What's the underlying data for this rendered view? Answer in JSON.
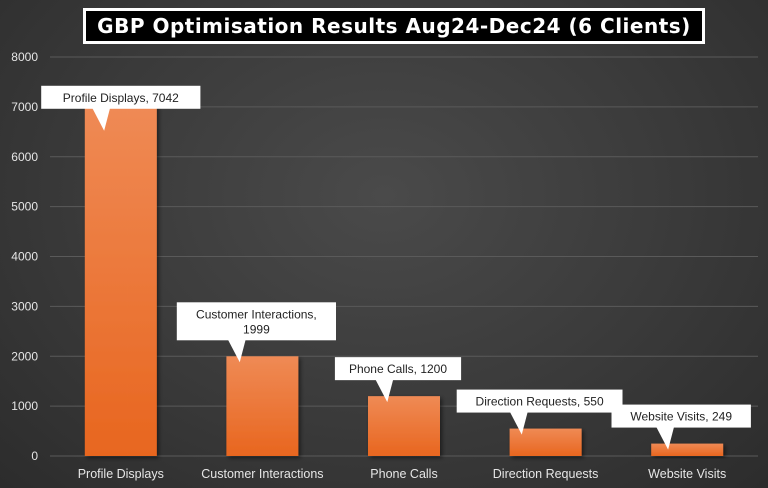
{
  "chart_data": {
    "type": "bar",
    "title": "GBP Optimisation Results Aug24-Dec24 (6 Clients)",
    "categories": [
      "Profile Displays",
      "Customer Interactions",
      "Phone Calls",
      "Direction Requests",
      "Website Visits"
    ],
    "values": [
      7042,
      1999,
      1200,
      550,
      249
    ],
    "data_labels": [
      [
        "Profile Displays, 7042"
      ],
      [
        "Customer Interactions,",
        "1999"
      ],
      [
        "Phone Calls, 1200"
      ],
      [
        "Direction Requests, 550"
      ],
      [
        "Website Visits, 249"
      ]
    ],
    "yticks": [
      "0",
      "1000",
      "2000",
      "3000",
      "4000",
      "5000",
      "6000",
      "7000",
      "8000"
    ],
    "ylim": [
      0,
      8000
    ],
    "grid": true,
    "colors": {
      "bar_top": "#ef8a55",
      "bar_bottom": "#e8661f",
      "callout": "#ffffff"
    }
  }
}
